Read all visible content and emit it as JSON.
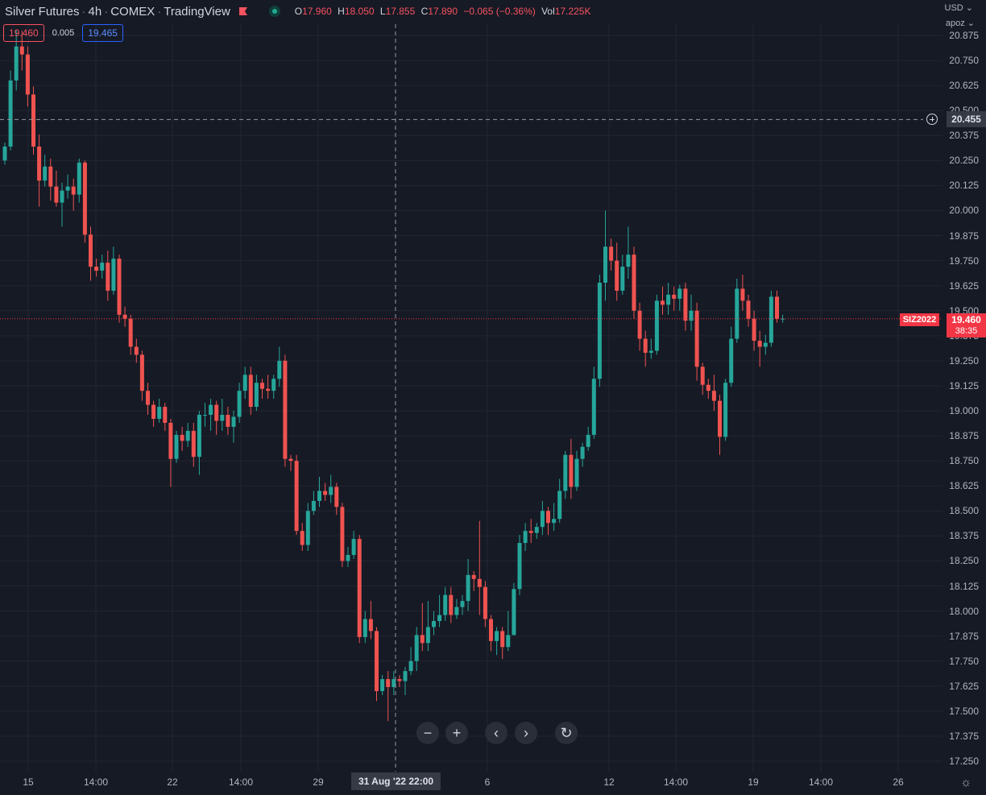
{
  "legend": {
    "symbol": "Silver Futures",
    "interval": "4h",
    "exchange": "COMEX",
    "source": "TradingView",
    "flag_color": "#f7525f",
    "open_key": "O",
    "open": "17.960",
    "high_key": "H",
    "high": "18.050",
    "low_key": "L",
    "low": "17.855",
    "close_key": "C",
    "close": "17.890",
    "change": "−0.065 (−0.36%)",
    "vol_key": "Vol",
    "volume": "17.225K"
  },
  "trade": {
    "sell": "19.460",
    "spread": "0.005",
    "buy": "19.465"
  },
  "top_right": {
    "currency": "USD ⌄",
    "account": "apoz ⌄"
  },
  "price_axis": {
    "labels": [
      "20.875",
      "20.750",
      "20.625",
      "20.500",
      "20.375",
      "20.250",
      "20.125",
      "20.000",
      "19.875",
      "19.750",
      "19.625",
      "19.500",
      "19.375",
      "19.250",
      "19.125",
      "19.000",
      "18.875",
      "18.750",
      "18.625",
      "18.500",
      "18.375",
      "18.250",
      "18.125",
      "18.000",
      "17.875",
      "17.750",
      "17.625",
      "17.500",
      "17.375",
      "17.250"
    ]
  },
  "time_axis": {
    "labels": [
      "15",
      "14:00",
      "22",
      "14:00",
      "29",
      "6",
      "12",
      "14:00",
      "19",
      "14:00",
      "26"
    ],
    "crosshair_label": "31 Aug '22   22:00"
  },
  "crosshair": {
    "price_label": "20.455"
  },
  "last_price": {
    "symbol_tag": "SIZ2022",
    "price": "19.460",
    "countdown": "38:35"
  },
  "nav": {
    "zoom_out": "−",
    "zoom_in": "+",
    "back": "‹",
    "forward": "›",
    "reset": "↻"
  },
  "colors": {
    "up": "#26a69a",
    "down": "#ef5350",
    "background": "#161a25",
    "grid": "#232632"
  },
  "chart_data": {
    "type": "candlestick",
    "title": "Silver Futures · 4h · COMEX · TradingView",
    "ylim": [
      17.2,
      20.9
    ],
    "grid": true,
    "last_price": 19.46,
    "crosshair_price": 20.455,
    "candles": [
      [
        20.25,
        20.32,
        20.23,
        20.34
      ],
      [
        20.32,
        20.65,
        20.3,
        20.7
      ],
      [
        20.65,
        20.82,
        20.6,
        20.9
      ],
      [
        20.82,
        20.78,
        20.7,
        20.9
      ],
      [
        20.78,
        20.58,
        20.52,
        20.82
      ],
      [
        20.58,
        20.32,
        20.28,
        20.62
      ],
      [
        20.32,
        20.15,
        20.02,
        20.38
      ],
      [
        20.15,
        20.22,
        20.12,
        20.28
      ],
      [
        20.22,
        20.12,
        20.05,
        20.26
      ],
      [
        20.12,
        20.04,
        20.02,
        20.2
      ],
      [
        20.04,
        20.1,
        19.92,
        20.14
      ],
      [
        20.1,
        20.12,
        20.06,
        20.18
      ],
      [
        20.12,
        20.08,
        20.0,
        20.16
      ],
      [
        20.08,
        20.24,
        20.04,
        20.26
      ],
      [
        20.24,
        19.88,
        19.84,
        20.25
      ],
      [
        19.88,
        19.72,
        19.65,
        19.92
      ],
      [
        19.72,
        19.7,
        19.67,
        19.76
      ],
      [
        19.7,
        19.74,
        19.66,
        19.78
      ],
      [
        19.74,
        19.6,
        19.55,
        19.8
      ],
      [
        19.6,
        19.76,
        19.58,
        19.82
      ],
      [
        19.76,
        19.48,
        19.44,
        19.78
      ],
      [
        19.48,
        19.46,
        19.42,
        19.52
      ],
      [
        19.46,
        19.32,
        19.28,
        19.48
      ],
      [
        19.32,
        19.28,
        19.24,
        19.36
      ],
      [
        19.28,
        19.1,
        19.05,
        19.3
      ],
      [
        19.1,
        19.03,
        18.98,
        19.14
      ],
      [
        19.03,
        18.96,
        18.92,
        19.05
      ],
      [
        18.96,
        19.02,
        18.94,
        19.06
      ],
      [
        19.02,
        18.94,
        18.9,
        19.04
      ],
      [
        18.94,
        18.76,
        18.62,
        18.96
      ],
      [
        18.76,
        18.88,
        18.74,
        18.9
      ],
      [
        18.88,
        18.85,
        18.8,
        18.92
      ],
      [
        18.85,
        18.9,
        18.82,
        18.94
      ],
      [
        18.9,
        18.77,
        18.72,
        18.94
      ],
      [
        18.77,
        18.98,
        18.68,
        19.0
      ],
      [
        18.98,
        18.98,
        18.92,
        19.04
      ],
      [
        18.98,
        19.03,
        18.9,
        19.06
      ],
      [
        19.03,
        18.95,
        18.88,
        19.05
      ],
      [
        18.95,
        18.98,
        18.9,
        19.06
      ],
      [
        18.98,
        18.92,
        18.88,
        19.02
      ],
      [
        18.92,
        18.97,
        18.84,
        19.0
      ],
      [
        18.97,
        19.1,
        18.94,
        19.14
      ],
      [
        19.1,
        19.18,
        19.06,
        19.22
      ],
      [
        19.18,
        19.02,
        18.98,
        19.22
      ],
      [
        19.02,
        19.14,
        19.0,
        19.18
      ],
      [
        19.14,
        19.11,
        19.06,
        19.16
      ],
      [
        19.11,
        19.1,
        19.06,
        19.18
      ],
      [
        19.1,
        19.16,
        19.06,
        19.18
      ],
      [
        19.16,
        19.25,
        19.12,
        19.32
      ],
      [
        19.25,
        18.76,
        18.72,
        19.28
      ],
      [
        18.76,
        18.75,
        18.7,
        18.78
      ],
      [
        18.75,
        18.4,
        18.38,
        18.78
      ],
      [
        18.4,
        18.33,
        18.3,
        18.44
      ],
      [
        18.33,
        18.5,
        18.3,
        18.54
      ],
      [
        18.5,
        18.55,
        18.48,
        18.6
      ],
      [
        18.55,
        18.6,
        18.52,
        18.67
      ],
      [
        18.6,
        18.58,
        18.55,
        18.64
      ],
      [
        18.58,
        18.62,
        18.54,
        18.68
      ],
      [
        18.62,
        18.52,
        18.48,
        18.64
      ],
      [
        18.52,
        18.25,
        18.22,
        18.54
      ],
      [
        18.25,
        18.28,
        18.22,
        18.32
      ],
      [
        18.28,
        18.36,
        18.26,
        18.4
      ],
      [
        18.36,
        17.87,
        17.84,
        18.38
      ],
      [
        17.87,
        17.96,
        17.84,
        18.0
      ],
      [
        17.96,
        17.9,
        17.86,
        18.05
      ],
      [
        17.9,
        17.6,
        17.55,
        17.92
      ],
      [
        17.6,
        17.66,
        17.58,
        17.68
      ],
      [
        17.66,
        17.62,
        17.45,
        17.7
      ],
      [
        17.62,
        17.66,
        17.58,
        17.7
      ],
      [
        17.66,
        17.65,
        17.62,
        17.68
      ],
      [
        17.65,
        17.7,
        17.58,
        17.72
      ],
      [
        17.7,
        17.75,
        17.68,
        17.82
      ],
      [
        17.75,
        17.88,
        17.7,
        17.92
      ],
      [
        17.88,
        17.84,
        17.8,
        18.04
      ],
      [
        17.84,
        17.92,
        17.8,
        18.05
      ],
      [
        17.92,
        17.95,
        17.88,
        18.0
      ],
      [
        17.95,
        17.98,
        17.92,
        18.08
      ],
      [
        17.98,
        18.08,
        17.95,
        18.12
      ],
      [
        18.08,
        17.98,
        17.94,
        18.12
      ],
      [
        17.98,
        18.02,
        17.96,
        18.06
      ],
      [
        18.02,
        18.05,
        17.98,
        18.08
      ],
      [
        18.05,
        18.18,
        18.0,
        18.26
      ],
      [
        18.18,
        18.16,
        18.1,
        18.2
      ],
      [
        18.16,
        18.12,
        17.98,
        18.45
      ],
      [
        18.12,
        17.96,
        17.92,
        18.15
      ],
      [
        17.96,
        17.85,
        17.8,
        17.98
      ],
      [
        17.85,
        17.9,
        17.78,
        17.92
      ],
      [
        17.9,
        17.82,
        17.76,
        17.92
      ],
      [
        17.82,
        17.88,
        17.8,
        18.0
      ],
      [
        17.88,
        18.11,
        17.88,
        18.14
      ],
      [
        18.11,
        18.34,
        18.08,
        18.38
      ],
      [
        18.34,
        18.4,
        18.3,
        18.44
      ],
      [
        18.4,
        18.39,
        18.34,
        18.46
      ],
      [
        18.39,
        18.42,
        18.36,
        18.44
      ],
      [
        18.42,
        18.5,
        18.38,
        18.55
      ],
      [
        18.5,
        18.44,
        18.38,
        18.52
      ],
      [
        18.44,
        18.46,
        18.4,
        18.54
      ],
      [
        18.46,
        18.6,
        18.44,
        18.66
      ],
      [
        18.6,
        18.78,
        18.56,
        18.8
      ],
      [
        18.78,
        18.62,
        18.56,
        18.86
      ],
      [
        18.62,
        18.76,
        18.6,
        18.8
      ],
      [
        18.76,
        18.82,
        18.72,
        18.84
      ],
      [
        18.82,
        18.88,
        18.8,
        18.92
      ],
      [
        18.88,
        19.16,
        18.86,
        19.22
      ],
      [
        19.16,
        19.64,
        19.12,
        19.68
      ],
      [
        19.64,
        19.82,
        19.55,
        20.0
      ],
      [
        19.82,
        19.75,
        19.7,
        19.86
      ],
      [
        19.75,
        19.6,
        19.55,
        19.84
      ],
      [
        19.6,
        19.72,
        19.58,
        19.78
      ],
      [
        19.72,
        19.78,
        19.66,
        19.92
      ],
      [
        19.78,
        19.5,
        19.46,
        19.82
      ],
      [
        19.5,
        19.36,
        19.3,
        19.54
      ],
      [
        19.36,
        19.29,
        19.22,
        19.4
      ],
      [
        19.29,
        19.3,
        19.26,
        19.36
      ],
      [
        19.3,
        19.55,
        19.28,
        19.58
      ],
      [
        19.55,
        19.53,
        19.48,
        19.62
      ],
      [
        19.53,
        19.58,
        19.48,
        19.64
      ],
      [
        19.58,
        19.56,
        19.5,
        19.62
      ],
      [
        19.56,
        19.61,
        19.5,
        19.63
      ],
      [
        19.61,
        19.45,
        19.4,
        19.64
      ],
      [
        19.45,
        19.5,
        19.4,
        19.58
      ],
      [
        19.5,
        19.22,
        19.15,
        19.54
      ],
      [
        19.22,
        19.13,
        19.08,
        19.24
      ],
      [
        19.13,
        19.1,
        19.06,
        19.16
      ],
      [
        19.1,
        19.05,
        19.0,
        19.18
      ],
      [
        19.05,
        18.87,
        18.78,
        19.08
      ],
      [
        18.87,
        19.14,
        18.85,
        19.16
      ],
      [
        19.14,
        19.36,
        19.12,
        19.42
      ],
      [
        19.36,
        19.61,
        19.34,
        19.66
      ],
      [
        19.61,
        19.55,
        19.5,
        19.68
      ],
      [
        19.55,
        19.46,
        19.42,
        19.58
      ],
      [
        19.46,
        19.35,
        19.3,
        19.5
      ],
      [
        19.35,
        19.32,
        19.22,
        19.4
      ],
      [
        19.32,
        19.34,
        19.28,
        19.38
      ],
      [
        19.34,
        19.57,
        19.32,
        19.6
      ],
      [
        19.57,
        19.46,
        19.44,
        19.6
      ],
      [
        19.46,
        19.46,
        19.44,
        19.48
      ]
    ]
  }
}
